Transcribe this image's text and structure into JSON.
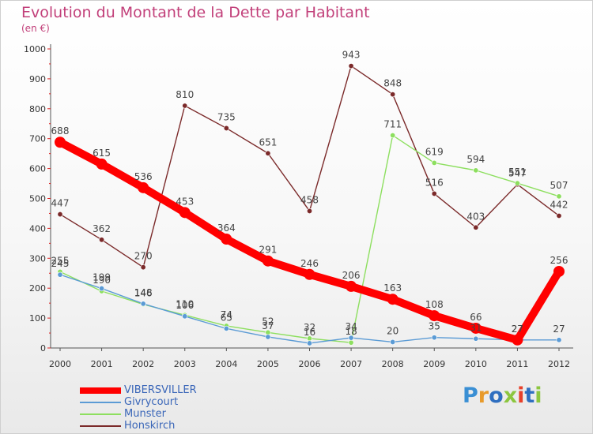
{
  "title": "Evolution du Montant de la Dette par Habitant",
  "subtitle": "(en €)",
  "brand": {
    "text": "Proxiti",
    "colors": [
      "#3a8fd4",
      "#e89a2a",
      "#2f6fc0",
      "#8cc63f",
      "#e8402a",
      "#2f6fc0",
      "#8cc63f"
    ]
  },
  "chart_data": {
    "type": "line",
    "title": "Evolution du Montant de la Dette par Habitant",
    "subtitle": "(en €)",
    "x": [
      "2000",
      "2001",
      "2002",
      "2003",
      "2004",
      "2005",
      "2006",
      "2007",
      "2008",
      "2009",
      "2010",
      "2011",
      "2012"
    ],
    "yticks": [
      "0",
      "100",
      "200",
      "300",
      "400",
      "500",
      "600",
      "700",
      "800",
      "900",
      "1000"
    ],
    "ylim": [
      0,
      1000
    ],
    "grid": false,
    "legend_position": "bottom-left",
    "series": [
      {
        "name": "VIBERSVILLER",
        "color": "#ff0000",
        "values": [
          688,
          615,
          536,
          453,
          364,
          291,
          246,
          206,
          163,
          108,
          66,
          27,
          256
        ],
        "labels": [
          "688",
          "615",
          "536",
          "453",
          "364",
          "291",
          "246",
          "206",
          "163",
          "108",
          "66",
          "27",
          "256"
        ]
      },
      {
        "name": "Givrycourt",
        "color": "#5b9bd5",
        "values": [
          245,
          199,
          148,
          106,
          65,
          37,
          16,
          34,
          20,
          35,
          31,
          27,
          27
        ],
        "labels": [
          "245",
          "199",
          "148",
          "106",
          "65",
          "37",
          "16",
          "34",
          "20",
          "35",
          "31",
          "27",
          "27"
        ]
      },
      {
        "name": "Munster",
        "color": "#8ddf5f",
        "values": [
          255,
          190,
          146,
          110,
          74,
          52,
          32,
          18,
          711,
          619,
          594,
          551,
          507
        ],
        "labels": [
          "255",
          "190",
          "146",
          "110",
          "74",
          "52",
          "32",
          "18",
          "711",
          "619",
          "594",
          "551",
          "507"
        ]
      },
      {
        "name": "Honskirch",
        "color": "#7b2a2a",
        "values": [
          447,
          362,
          270,
          810,
          735,
          651,
          458,
          943,
          848,
          516,
          403,
          547,
          442
        ],
        "labels": [
          "447",
          "362",
          "270",
          "810",
          "735",
          "651",
          "458",
          "943",
          "848",
          "516",
          "403",
          "547",
          "442"
        ]
      }
    ]
  }
}
